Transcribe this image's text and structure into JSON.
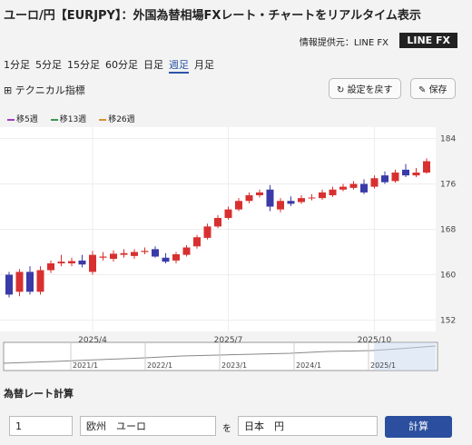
{
  "header": {
    "title": "ユーロ/円【EURJPY】：外国為替相場FXレート・チャートをリアルタイム表示",
    "source": "情報提供元：LINE FX",
    "logo": "LINE FX"
  },
  "tabs": [
    "1分足",
    "5分足",
    "15分足",
    "60分足",
    "日足",
    "週足",
    "月足"
  ],
  "toolbar": {
    "technical": "テクニカル指標",
    "reset": "設定を戻す",
    "save": "保存"
  },
  "chart_data": {
    "type": "candlestick",
    "categories": [
      null,
      null,
      null,
      null,
      null,
      null,
      null,
      null,
      "2025/4",
      null,
      null,
      null,
      null,
      null,
      null,
      null,
      null,
      null,
      null,
      null,
      null,
      "2025/7",
      null,
      null,
      null,
      null,
      null,
      null,
      null,
      null,
      null,
      null,
      null,
      null,
      null,
      "2025/10",
      null,
      null,
      null,
      null,
      null
    ],
    "open": [
      160,
      157,
      160.5,
      157,
      160.8,
      162,
      162,
      162.5,
      160.5,
      163,
      162.8,
      163.5,
      163.3,
      164,
      164.5,
      163,
      162.5,
      163.5,
      165,
      166.5,
      168.5,
      170,
      171.5,
      173,
      174,
      175,
      171.5,
      173,
      172.8,
      173.5,
      173.5,
      174,
      175,
      175.3,
      176,
      175.5,
      177.5,
      176.5,
      178.5,
      177.5,
      178
    ],
    "high": [
      160.5,
      161,
      161.5,
      161.5,
      162.5,
      163.5,
      163,
      163.5,
      164.2,
      164,
      164.3,
      164.5,
      164.5,
      164.8,
      165,
      163.8,
      164,
      165.2,
      167,
      169,
      170.5,
      172,
      173.5,
      174.5,
      175,
      175.8,
      173.5,
      173.8,
      174,
      174.2,
      175,
      175.5,
      176,
      176.5,
      176.8,
      177.5,
      178.2,
      178.5,
      179.5,
      178.8,
      180.5
    ],
    "low": [
      156,
      156.2,
      156.5,
      156.5,
      160.3,
      161.5,
      161.5,
      161.3,
      160,
      162.5,
      162.3,
      163,
      162.8,
      163.6,
      163,
      162,
      162,
      163.2,
      164.6,
      166.2,
      168.2,
      169.7,
      171.2,
      172.6,
      173.6,
      171.2,
      171,
      172.1,
      172.5,
      173.1,
      173.2,
      173.7,
      174.7,
      175,
      174.2,
      175.2,
      176,
      176.2,
      177.2,
      177.2,
      177.8
    ],
    "close": [
      156.5,
      160.5,
      157,
      160.8,
      162,
      162.3,
      162.4,
      161.8,
      163.5,
      163.2,
      163.7,
      163.8,
      164,
      164.2,
      163.2,
      162.3,
      163.6,
      164.8,
      166.6,
      168.5,
      170,
      171.5,
      173,
      174,
      174.5,
      172,
      173,
      172.5,
      173.5,
      173.6,
      174.5,
      175,
      175.5,
      176,
      174.5,
      177,
      176.3,
      178,
      177.5,
      178,
      180
    ],
    "up_color": "#d83030",
    "down_color": "#3a3aa8",
    "lines": [
      {
        "name": "移5週",
        "color": "#a040c0",
        "values": [
          158.5,
          159,
          159,
          159.2,
          159.8,
          160.5,
          161.3,
          162,
          162.3,
          162.6,
          163,
          163.3,
          163.6,
          163.8,
          163.9,
          163.7,
          163.6,
          163.6,
          164,
          164.8,
          166,
          167.5,
          169,
          170.5,
          172,
          172.8,
          173,
          173,
          172.8,
          173,
          173.2,
          173.5,
          174,
          174.5,
          175,
          175.3,
          175.8,
          176.2,
          176.7,
          177.2,
          177.8
        ]
      },
      {
        "name": "移13週",
        "color": "#3a9a50",
        "values": [
          161.5,
          161.2,
          161,
          160.8,
          160.7,
          160.7,
          160.8,
          161,
          161.2,
          161.5,
          161.8,
          162,
          162.3,
          162.5,
          162.7,
          162.9,
          163,
          163.2,
          163.5,
          163.9,
          164.4,
          165,
          165.8,
          166.6,
          167.5,
          168.3,
          169.2,
          170,
          170.7,
          171.3,
          171.8,
          172.3,
          172.8,
          173.2,
          173.5,
          173.9,
          174.3,
          174.7,
          175.1,
          175.6,
          176.1
        ]
      },
      {
        "name": "移26週",
        "color": "#d89030",
        "values": [
          161,
          161,
          160.9,
          160.8,
          160.7,
          160.6,
          160.6,
          160.6,
          160.7,
          160.8,
          160.9,
          161,
          161.1,
          161.3,
          161.5,
          161.7,
          162,
          162.2,
          162.5,
          162.8,
          163.1,
          163.5,
          163.9,
          164.3,
          164.7,
          165.1,
          165.5,
          166,
          166.5,
          167,
          167.5,
          168,
          168.5,
          169,
          169.5,
          170,
          170.5,
          171,
          171.5,
          172,
          172.5
        ]
      }
    ],
    "ylim": [
      150,
      186
    ],
    "yticks": [
      152,
      160,
      168,
      176,
      184
    ],
    "grid": true
  },
  "navigator": {
    "labels": [
      "2021/1",
      "2022/1",
      "2023/1",
      "2024/1",
      "2025/1"
    ]
  },
  "calculator": {
    "title": "為替レート計算",
    "amount": "1",
    "from": "欧州　ユーロ",
    "mid": "を",
    "to": "日本　円",
    "button": "計算"
  }
}
